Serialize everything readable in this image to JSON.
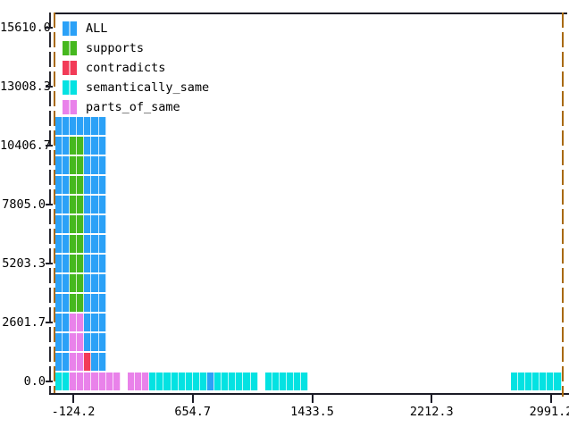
{
  "chart_data": {
    "type": "scatter",
    "title": "",
    "xlabel": "",
    "ylabel": "",
    "marker": "square-cell",
    "legend": {
      "position": "top-left",
      "entries": [
        {
          "key": "A",
          "label": "ALL",
          "color": "#2ba1f7"
        },
        {
          "key": "S",
          "label": "supports",
          "color": "#46b81f"
        },
        {
          "key": "C",
          "label": "contradicts",
          "color": "#f23b57"
        },
        {
          "key": "M",
          "label": "semantically_same",
          "color": "#04e2e2"
        },
        {
          "key": "P",
          "label": "parts_of_same",
          "color": "#e982ea"
        }
      ]
    },
    "axes": {
      "x_ticks": [
        "-124.2",
        "654.7",
        "1433.5",
        "2212.3",
        "2991.2"
      ],
      "y_ticks": [
        "15610.0",
        "13008.3",
        "10406.7",
        "7805.0",
        "5203.3",
        "2601.7",
        "0.0"
      ],
      "x_range": [
        -124.2,
        2991.2
      ],
      "y_range": [
        0,
        15610.0
      ],
      "grid": false
    },
    "rows": [
      {
        "y": 11274,
        "cells": [
          [
            "A",
            7
          ]
        ]
      },
      {
        "y": 10407,
        "cells": [
          [
            "A",
            2
          ],
          [
            "S",
            2
          ],
          [
            "A",
            3
          ]
        ]
      },
      {
        "y": 9540,
        "cells": [
          [
            "A",
            2
          ],
          [
            "S",
            2
          ],
          [
            "A",
            3
          ]
        ]
      },
      {
        "y": 8672,
        "cells": [
          [
            "A",
            2
          ],
          [
            "S",
            2
          ],
          [
            "A",
            3
          ]
        ]
      },
      {
        "y": 7805,
        "cells": [
          [
            "A",
            2
          ],
          [
            "S",
            2
          ],
          [
            "A",
            3
          ]
        ]
      },
      {
        "y": 6938,
        "cells": [
          [
            "A",
            2
          ],
          [
            "S",
            2
          ],
          [
            "A",
            3
          ]
        ]
      },
      {
        "y": 6071,
        "cells": [
          [
            "A",
            2
          ],
          [
            "S",
            2
          ],
          [
            "A",
            3
          ]
        ]
      },
      {
        "y": 5203,
        "cells": [
          [
            "A",
            2
          ],
          [
            "S",
            2
          ],
          [
            "A",
            3
          ]
        ]
      },
      {
        "y": 4336,
        "cells": [
          [
            "A",
            2
          ],
          [
            "S",
            2
          ],
          [
            "A",
            3
          ]
        ]
      },
      {
        "y": 3469,
        "cells": [
          [
            "A",
            2
          ],
          [
            "S",
            2
          ],
          [
            "A",
            3
          ]
        ]
      },
      {
        "y": 2602,
        "cells": [
          [
            "A",
            2
          ],
          [
            "P",
            2
          ],
          [
            "A",
            3
          ]
        ]
      },
      {
        "y": 1734,
        "cells": [
          [
            "A",
            2
          ],
          [
            "P",
            2
          ],
          [
            "A",
            3
          ]
        ]
      },
      {
        "y": 867,
        "cells": [
          [
            "A",
            2
          ],
          [
            "P",
            2
          ],
          [
            "C",
            1
          ],
          [
            "A",
            2
          ]
        ]
      },
      {
        "y": 0,
        "cells": [
          [
            "M",
            2
          ],
          [
            "P",
            7
          ],
          [
            ".",
            1
          ],
          [
            "P",
            3
          ],
          [
            "M",
            8
          ],
          [
            "A",
            1
          ],
          [
            "M",
            6
          ],
          [
            ".",
            1
          ],
          [
            "M",
            6
          ],
          [
            ".",
            28
          ],
          [
            "M",
            7
          ]
        ]
      }
    ]
  },
  "frame": {
    "background": "#ffffff",
    "axis_color": "#1b1b26",
    "side_border_color": "#a8690d",
    "text_color": "#000000"
  }
}
